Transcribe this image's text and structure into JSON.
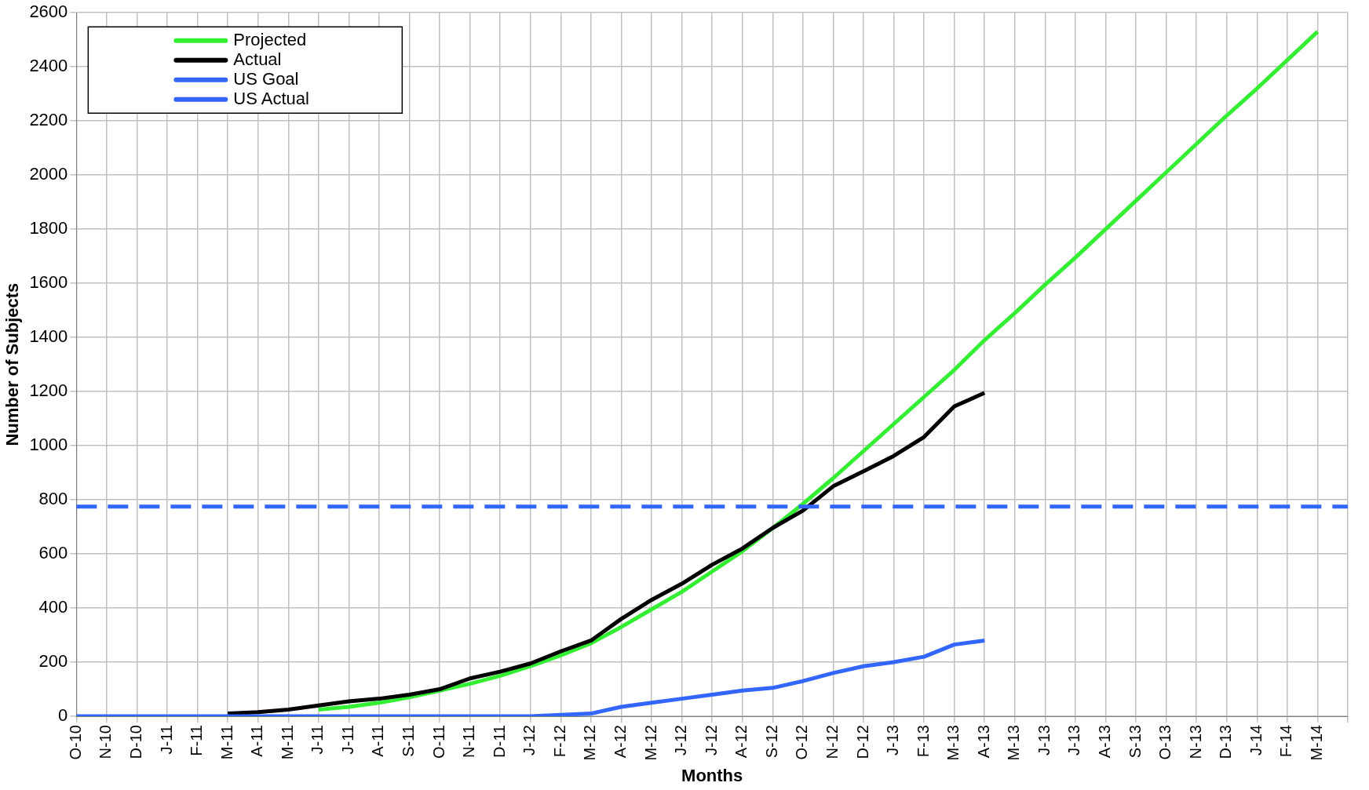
{
  "chart_data": {
    "type": "line",
    "xlabel": "Months",
    "ylabel": "Number of Subjects",
    "categories": [
      "O-10",
      "N-10",
      "D-10",
      "J-11",
      "F-11",
      "M-11",
      "A-11",
      "M-11",
      "J-11",
      "J-11",
      "A-11",
      "S-11",
      "O-11",
      "N-11",
      "D-11",
      "J-12",
      "F-12",
      "M-12",
      "A-12",
      "M-12",
      "J-12",
      "J-12",
      "A-12",
      "S-12",
      "O-12",
      "N-12",
      "D-12",
      "J-13",
      "F-13",
      "M-13",
      "A-13",
      "M-13",
      "J-13",
      "J-13",
      "A-13",
      "S-13",
      "O-13",
      "N-13",
      "D-13",
      "J-14",
      "F-14",
      "M-14",
      null
    ],
    "series": [
      {
        "name": "Projected",
        "color": "#33ee33",
        "values": [
          null,
          null,
          null,
          null,
          null,
          null,
          null,
          null,
          25,
          35,
          50,
          70,
          95,
          120,
          150,
          185,
          225,
          270,
          330,
          395,
          460,
          535,
          610,
          695,
          785,
          880,
          980,
          1080,
          1180,
          1280,
          1390,
          1490,
          1595,
          1695,
          1800,
          1905,
          2010,
          2115,
          2220,
          2320,
          2425,
          2530,
          null
        ]
      },
      {
        "name": "Actual",
        "color": "#000000",
        "values": [
          null,
          null,
          null,
          null,
          null,
          10,
          15,
          25,
          40,
          55,
          65,
          80,
          100,
          140,
          165,
          195,
          240,
          280,
          360,
          430,
          490,
          560,
          620,
          696,
          760,
          850,
          905,
          962,
          1032,
          1145,
          1195,
          null,
          null,
          null,
          null,
          null,
          null,
          null,
          null,
          null,
          null,
          null,
          null
        ]
      },
      {
        "name": "US Goal",
        "color": "#3366ff",
        "line_style": "dashed",
        "values": [
          775,
          775,
          775,
          775,
          775,
          775,
          775,
          775,
          775,
          775,
          775,
          775,
          775,
          775,
          775,
          775,
          775,
          775,
          775,
          775,
          775,
          775,
          775,
          775,
          775,
          775,
          775,
          775,
          775,
          775,
          775,
          775,
          775,
          775,
          775,
          775,
          775,
          775,
          775,
          775,
          775,
          775,
          775
        ]
      },
      {
        "name": "US Actual",
        "color": "#3366ff",
        "values": [
          0,
          0,
          0,
          0,
          0,
          0,
          0,
          0,
          0,
          0,
          0,
          0,
          0,
          0,
          0,
          0,
          5,
          10,
          35,
          50,
          65,
          80,
          95,
          105,
          130,
          160,
          185,
          200,
          220,
          265,
          280,
          null,
          null,
          null,
          null,
          null,
          null,
          null,
          null,
          null,
          null,
          null,
          null
        ]
      }
    ],
    "ylim": [
      0,
      2600
    ],
    "yticks": [
      0,
      200,
      400,
      600,
      800,
      1000,
      1200,
      1400,
      1600,
      1800,
      2000,
      2200,
      2400,
      2600
    ],
    "grid": true,
    "legend": "top left",
    "marker": "none",
    "line_style": "solid"
  }
}
